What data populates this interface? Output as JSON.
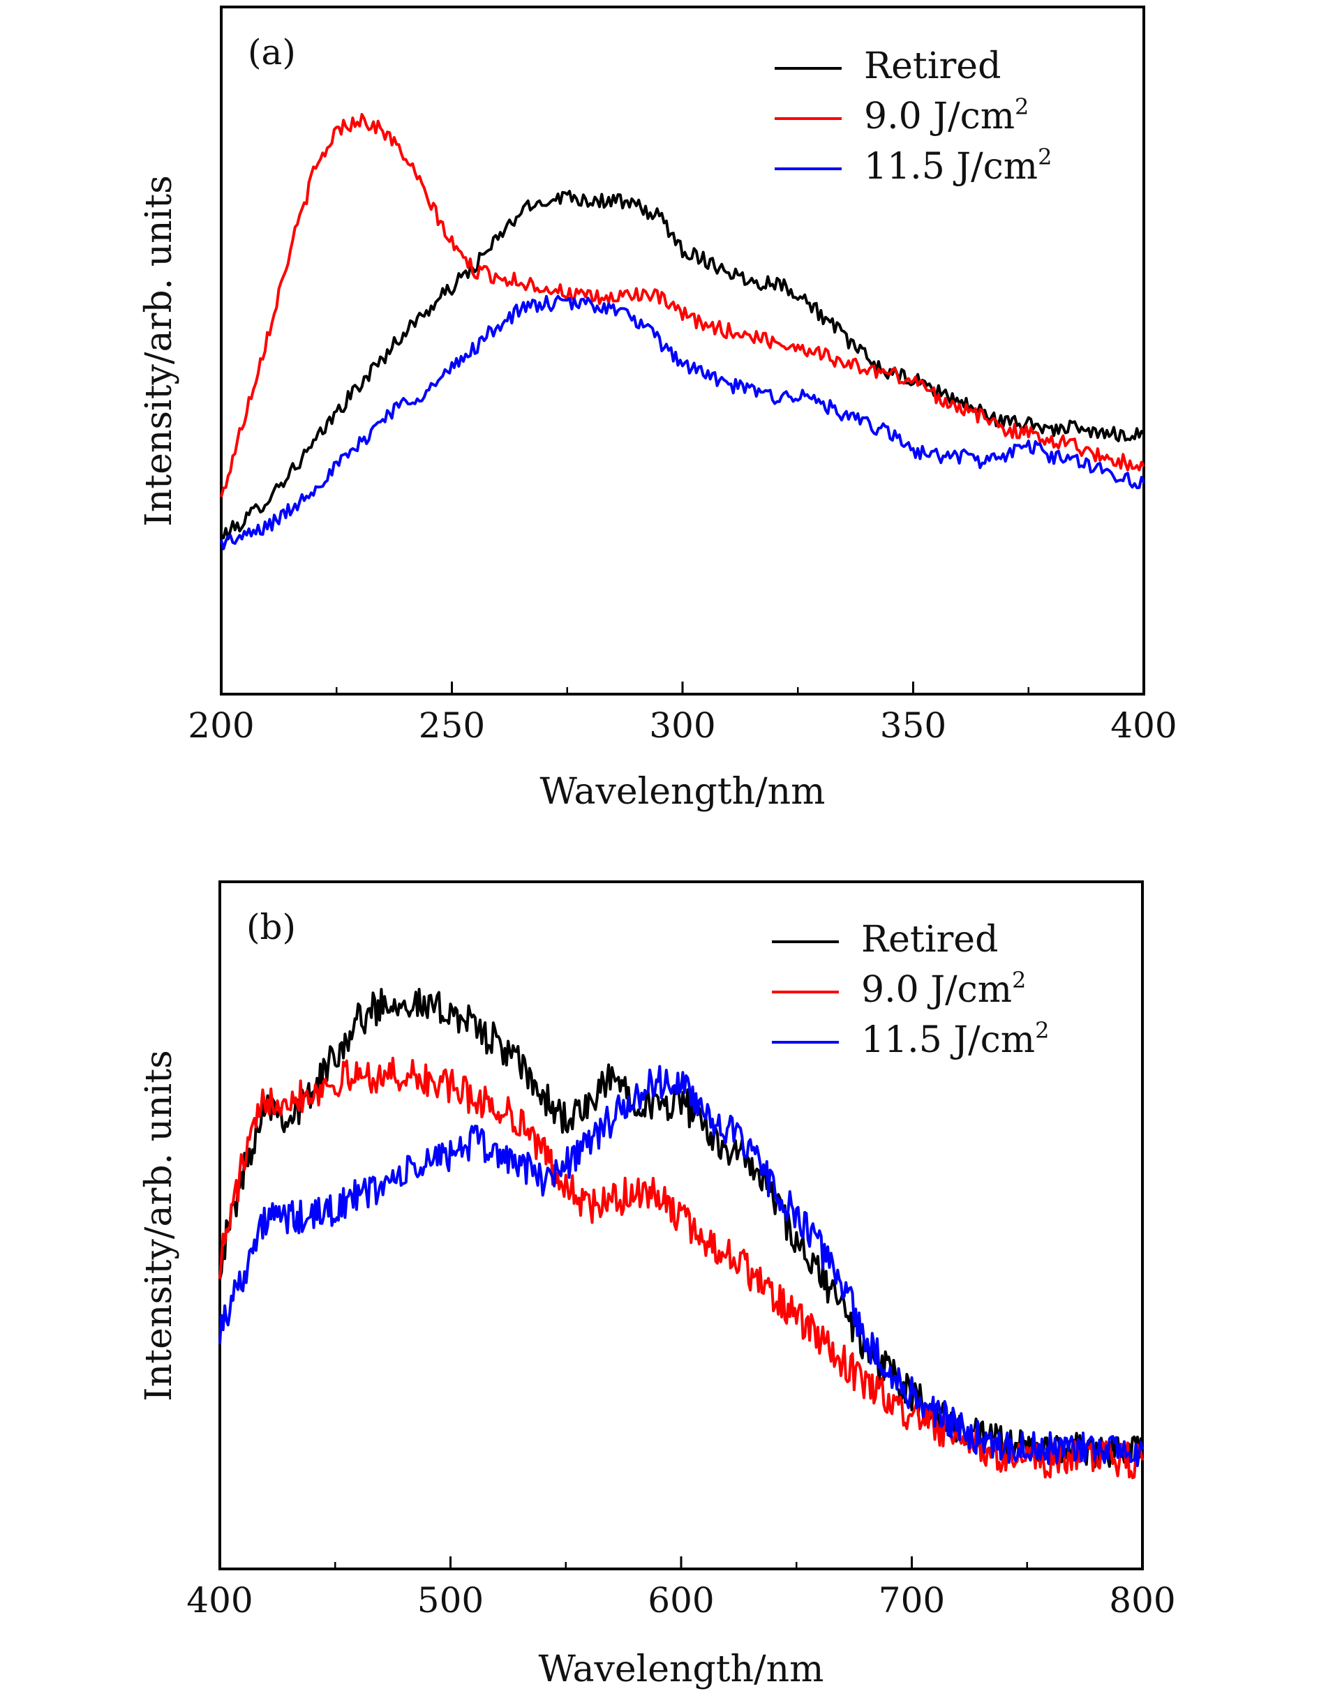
{
  "chart_data": [
    {
      "panel": "(a)",
      "type": "line",
      "xlabel": "Wavelength/nm",
      "ylabel": "Intensity/arb. units",
      "xlim": [
        200,
        400
      ],
      "ylim": [
        0,
        100
      ],
      "xticks": [
        200,
        250,
        300,
        350,
        400
      ],
      "xtick_labels": [
        "200",
        "250",
        "300",
        "350",
        "400"
      ],
      "y_tick_labels_shown": false,
      "grid": false,
      "legend_position": "top-right",
      "series": [
        {
          "name": "Retired",
          "color": "#000000",
          "x": [
            200,
            205,
            210,
            215,
            220,
            225,
            230,
            235,
            240,
            245,
            250,
            255,
            260,
            265,
            270,
            275,
            280,
            285,
            290,
            295,
            300,
            305,
            310,
            315,
            320,
            325,
            330,
            335,
            340,
            345,
            350,
            355,
            360,
            365,
            370,
            375,
            380,
            385,
            390,
            395,
            400
          ],
          "y": [
            15,
            18,
            22,
            27,
            32,
            38,
            43,
            48,
            53,
            57,
            61,
            65,
            70,
            75,
            77,
            78,
            77,
            77,
            76,
            74,
            68,
            66,
            64,
            62,
            62,
            60,
            56,
            52,
            48,
            45,
            44,
            42,
            40,
            38,
            36,
            36,
            35,
            35,
            34,
            34,
            34
          ]
        },
        {
          "name": "9.0 J/cm²",
          "color": "#ff0000",
          "x": [
            200,
            205,
            210,
            215,
            220,
            225,
            230,
            235,
            240,
            245,
            250,
            255,
            260,
            265,
            270,
            275,
            280,
            285,
            290,
            295,
            300,
            305,
            310,
            315,
            320,
            325,
            330,
            335,
            340,
            345,
            350,
            355,
            360,
            365,
            370,
            375,
            380,
            385,
            390,
            395,
            400
          ],
          "y": [
            22,
            37,
            52,
            68,
            82,
            90,
            92,
            90,
            85,
            77,
            69,
            64,
            63,
            62,
            61,
            60,
            59,
            59,
            60,
            59,
            56,
            54,
            53,
            52,
            51,
            50,
            49,
            47,
            46,
            45,
            44,
            41,
            39,
            37,
            35,
            34,
            33,
            32,
            30,
            29,
            28
          ]
        },
        {
          "name": "11.5 J/cm²",
          "color": "#0000ff",
          "x": [
            200,
            205,
            210,
            215,
            220,
            225,
            230,
            235,
            240,
            245,
            250,
            255,
            260,
            265,
            270,
            275,
            280,
            285,
            290,
            295,
            300,
            305,
            310,
            315,
            320,
            325,
            330,
            335,
            340,
            345,
            350,
            355,
            360,
            365,
            370,
            375,
            380,
            385,
            390,
            395,
            400
          ],
          "y": [
            14,
            15,
            17,
            20,
            24,
            28,
            32,
            37,
            40,
            42,
            46,
            50,
            54,
            57,
            58,
            58,
            58,
            57,
            55,
            51,
            47,
            45,
            43,
            42,
            41,
            41,
            40,
            37,
            36,
            34,
            31,
            30,
            30,
            29,
            30,
            32,
            30,
            29,
            28,
            26,
            25
          ]
        }
      ]
    },
    {
      "panel": "(b)",
      "type": "line",
      "xlabel": "Wavelength/nm",
      "ylabel": "Intensity/arb. units",
      "xlim": [
        400,
        800
      ],
      "ylim": [
        0,
        100
      ],
      "xticks": [
        400,
        500,
        600,
        700,
        800
      ],
      "xtick_labels": [
        "400",
        "500",
        "600",
        "700",
        "800"
      ],
      "y_tick_labels_shown": false,
      "grid": false,
      "legend_position": "top-right",
      "series": [
        {
          "name": "Retired",
          "color": "#000000",
          "x": [
            400,
            410,
            420,
            430,
            440,
            450,
            460,
            470,
            480,
            490,
            500,
            510,
            520,
            530,
            540,
            550,
            560,
            570,
            580,
            590,
            600,
            610,
            620,
            630,
            640,
            650,
            660,
            670,
            680,
            690,
            700,
            710,
            720,
            730,
            740,
            750,
            760,
            770,
            780,
            790,
            800
          ],
          "y": [
            42,
            58,
            72,
            68,
            73,
            80,
            86,
            89,
            90,
            88,
            88,
            85,
            82,
            78,
            72,
            68,
            70,
            76,
            72,
            70,
            72,
            66,
            63,
            60,
            54,
            45,
            40,
            34,
            26,
            22,
            18,
            15,
            12,
            10,
            9,
            8,
            8,
            8,
            8,
            8,
            8
          ]
        },
        {
          "name": "9.0 J/cm²",
          "color": "#ff0000",
          "x": [
            400,
            410,
            420,
            430,
            440,
            450,
            460,
            470,
            480,
            490,
            500,
            510,
            520,
            530,
            540,
            550,
            560,
            570,
            580,
            590,
            600,
            610,
            620,
            630,
            640,
            650,
            660,
            670,
            680,
            690,
            700,
            710,
            720,
            730,
            740,
            750,
            760,
            770,
            780,
            790,
            800
          ],
          "y": [
            42,
            60,
            72,
            72,
            73,
            75,
            76,
            76,
            76,
            75,
            74,
            72,
            70,
            68,
            62,
            56,
            52,
            53,
            55,
            54,
            50,
            46,
            44,
            40,
            36,
            32,
            28,
            24,
            20,
            17,
            14,
            12,
            10,
            8,
            7,
            6,
            6,
            7,
            7,
            6,
            6
          ]
        },
        {
          "name": "11.5 J/cm²",
          "color": "#0000ff",
          "x": [
            400,
            410,
            420,
            430,
            440,
            450,
            460,
            470,
            480,
            490,
            500,
            510,
            520,
            530,
            540,
            550,
            560,
            570,
            580,
            590,
            600,
            610,
            620,
            630,
            640,
            650,
            660,
            670,
            680,
            690,
            700,
            710,
            720,
            730,
            740,
            750,
            760,
            770,
            780,
            790,
            800
          ],
          "y": [
            30,
            40,
            50,
            50,
            50,
            52,
            54,
            56,
            58,
            60,
            62,
            64,
            62,
            60,
            57,
            60,
            64,
            68,
            72,
            75,
            74,
            70,
            66,
            62,
            56,
            50,
            45,
            38,
            28,
            22,
            18,
            15,
            12,
            10,
            9,
            8,
            8,
            8,
            8,
            8,
            8
          ]
        }
      ]
    }
  ]
}
